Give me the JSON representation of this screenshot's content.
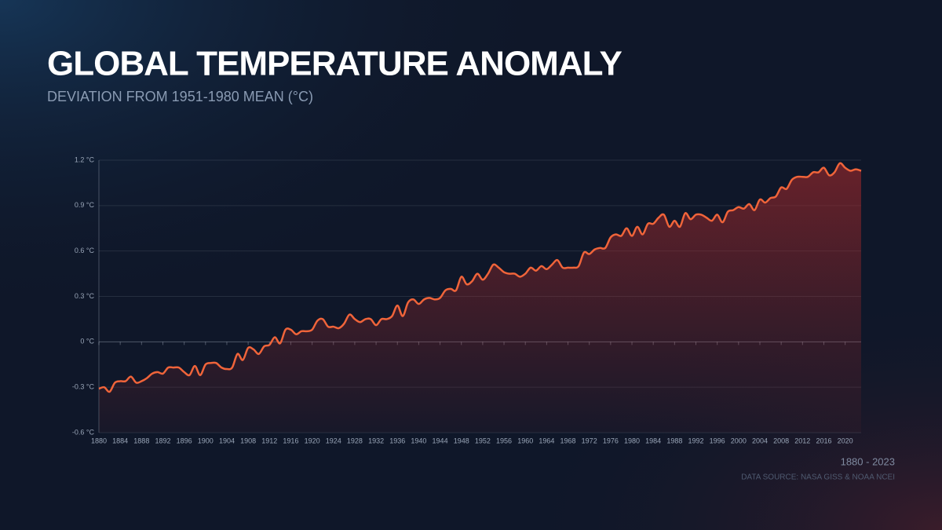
{
  "chart_data": {
    "type": "area-line",
    "title": "GLOBAL TEMPERATURE ANOMALY",
    "subtitle": "DEVIATION FROM 1951-1980 MEAN (°C)",
    "range_label": "1880 - 2023",
    "source": "DATA SOURCE: NASA GISS & NOAA NCEI",
    "color": "#f0643a",
    "grid": true,
    "x": [
      1880,
      1881,
      1882,
      1883,
      1884,
      1885,
      1886,
      1887,
      1888,
      1889,
      1890,
      1891,
      1892,
      1893,
      1894,
      1895,
      1896,
      1897,
      1898,
      1899,
      1900,
      1901,
      1902,
      1903,
      1904,
      1905,
      1906,
      1907,
      1908,
      1909,
      1910,
      1911,
      1912,
      1913,
      1914,
      1915,
      1916,
      1917,
      1918,
      1919,
      1920,
      1921,
      1922,
      1923,
      1924,
      1925,
      1926,
      1927,
      1928,
      1929,
      1930,
      1931,
      1932,
      1933,
      1934,
      1935,
      1936,
      1937,
      1938,
      1939,
      1940,
      1941,
      1942,
      1943,
      1944,
      1945,
      1946,
      1947,
      1948,
      1949,
      1950,
      1951,
      1952,
      1953,
      1954,
      1955,
      1956,
      1957,
      1958,
      1959,
      1960,
      1961,
      1962,
      1963,
      1964,
      1965,
      1966,
      1967,
      1968,
      1969,
      1970,
      1971,
      1972,
      1973,
      1974,
      1975,
      1976,
      1977,
      1978,
      1979,
      1980,
      1981,
      1982,
      1983,
      1984,
      1985,
      1986,
      1987,
      1988,
      1989,
      1990,
      1991,
      1992,
      1993,
      1994,
      1995,
      1996,
      1997,
      1998,
      1999,
      2000,
      2001,
      2002,
      2003,
      2004,
      2005,
      2006,
      2007,
      2008,
      2009,
      2010,
      2011,
      2012,
      2013,
      2014,
      2015,
      2016,
      2017,
      2018,
      2019,
      2020,
      2021,
      2022,
      2023
    ],
    "values": [
      -0.31,
      -0.3,
      -0.33,
      -0.27,
      -0.26,
      -0.26,
      -0.23,
      -0.27,
      -0.26,
      -0.24,
      -0.21,
      -0.2,
      -0.21,
      -0.17,
      -0.17,
      -0.17,
      -0.2,
      -0.22,
      -0.16,
      -0.22,
      -0.15,
      -0.14,
      -0.14,
      -0.17,
      -0.18,
      -0.17,
      -0.08,
      -0.12,
      -0.04,
      -0.05,
      -0.08,
      -0.03,
      -0.02,
      0.03,
      -0.01,
      0.08,
      0.08,
      0.05,
      0.07,
      0.07,
      0.08,
      0.14,
      0.15,
      0.1,
      0.1,
      0.09,
      0.12,
      0.18,
      0.15,
      0.13,
      0.15,
      0.15,
      0.11,
      0.15,
      0.15,
      0.17,
      0.24,
      0.17,
      0.26,
      0.28,
      0.25,
      0.28,
      0.29,
      0.28,
      0.29,
      0.34,
      0.35,
      0.34,
      0.43,
      0.38,
      0.4,
      0.45,
      0.41,
      0.45,
      0.51,
      0.49,
      0.46,
      0.45,
      0.45,
      0.43,
      0.45,
      0.49,
      0.47,
      0.5,
      0.48,
      0.51,
      0.54,
      0.49,
      0.49,
      0.49,
      0.5,
      0.59,
      0.58,
      0.61,
      0.62,
      0.62,
      0.69,
      0.71,
      0.7,
      0.75,
      0.7,
      0.76,
      0.71,
      0.78,
      0.78,
      0.82,
      0.84,
      0.76,
      0.8,
      0.76,
      0.85,
      0.81,
      0.84,
      0.84,
      0.82,
      0.8,
      0.84,
      0.79,
      0.86,
      0.87,
      0.89,
      0.88,
      0.91,
      0.87,
      0.94,
      0.92,
      0.95,
      0.96,
      1.02,
      1.01,
      1.07,
      1.09,
      1.09,
      1.09,
      1.12,
      1.12,
      1.15,
      1.1,
      1.12,
      1.18,
      1.15,
      1.13,
      1.14,
      1.13
    ],
    "xlim": [
      1880,
      2023
    ],
    "xticks": [
      1880,
      1884,
      1888,
      1892,
      1896,
      1900,
      1904,
      1908,
      1912,
      1916,
      1920,
      1924,
      1928,
      1932,
      1936,
      1940,
      1944,
      1948,
      1952,
      1956,
      1960,
      1964,
      1968,
      1972,
      1976,
      1980,
      1984,
      1988,
      1992,
      1996,
      2000,
      2004,
      2008,
      2012,
      2016,
      2020
    ],
    "ylim": [
      -0.6,
      1.2
    ],
    "yticks": [
      {
        "value": -0.6,
        "label": "-0.6 °C"
      },
      {
        "value": -0.3,
        "label": "-0.3 °C"
      },
      {
        "value": 0,
        "label": "0 °C"
      },
      {
        "value": 0.3,
        "label": "0.3 °C"
      },
      {
        "value": 0.6,
        "label": "0.6 °C"
      },
      {
        "value": 0.9,
        "label": "0.9 °C"
      },
      {
        "value": 1.2,
        "label": "1.2 °C"
      }
    ]
  }
}
